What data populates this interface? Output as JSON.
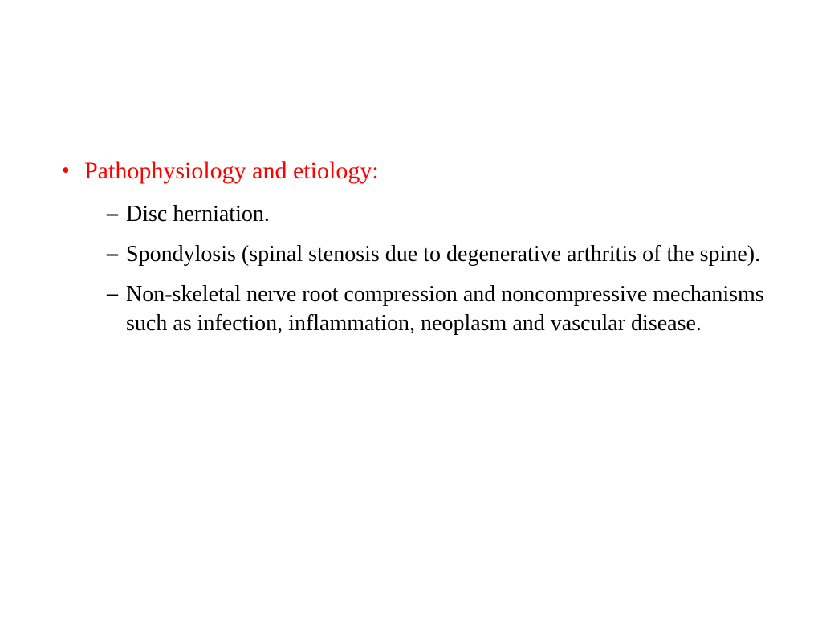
{
  "slide": {
    "background_color": "#ffffff",
    "font_family": "Times New Roman",
    "level1": {
      "bullet_char": "•",
      "bullet_color": "#ff0000",
      "text_color": "#ff0000",
      "font_size": 30,
      "items": [
        {
          "text": "Pathophysiology and etiology:",
          "children": {
            "bullet_char": "–",
            "bullet_color": "#000000",
            "text_color": "#000000",
            "font_size": 28,
            "items": [
              {
                "text": "Disc herniation."
              },
              {
                "text": "Spondylosis (spinal stenosis due to degenerative arthritis of the spine)."
              },
              {
                "text": "Non-skeletal nerve root compression and noncompressive mechanisms such as infection, inflammation, neoplasm and vascular disease."
              }
            ]
          }
        }
      ]
    }
  }
}
